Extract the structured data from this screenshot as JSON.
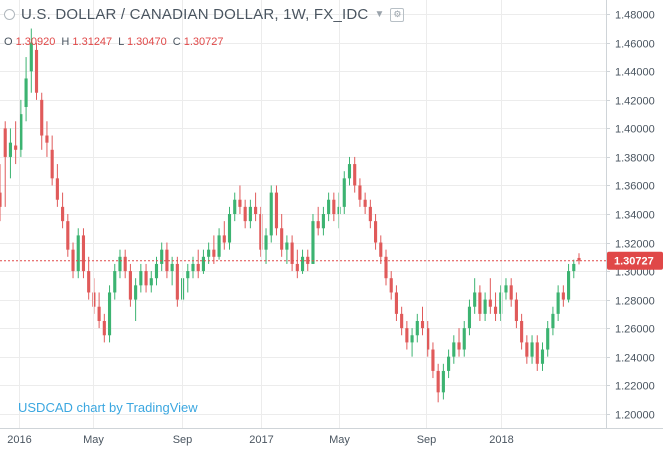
{
  "header": {
    "title": "U.S. DOLLAR / CANADIAN DOLLAR, 1W, FX_IDC",
    "caret": "▼",
    "settings_glyph": "⚙",
    "ohlc": [
      {
        "label": "O",
        "value": "1.30920"
      },
      {
        "label": "H",
        "value": "1.31247"
      },
      {
        "label": "L",
        "value": "1.30470"
      },
      {
        "label": "C",
        "value": "1.30727"
      }
    ]
  },
  "watermark": "USDCAD chart by TradingView",
  "chart_data": {
    "type": "candlestick",
    "title": "U.S. DOLLAR / CANADIAN DOLLAR, 1W, FX_IDC",
    "y_ticks": [
      "1.20000",
      "1.22000",
      "1.24000",
      "1.26000",
      "1.28000",
      "1.30000",
      "1.32000",
      "1.34000",
      "1.36000",
      "1.38000",
      "1.40000",
      "1.42000",
      "1.44000",
      "1.46000",
      "1.48000"
    ],
    "y_range": [
      1.19,
      1.49
    ],
    "x_ticks": [
      "2016",
      "May",
      "Sep",
      "2017",
      "May",
      "Sep",
      "2018"
    ],
    "last_price": "1.30727",
    "last_price_value": 1.30727,
    "colors": {
      "up": "#3cb371",
      "down": "#e05a5a",
      "last_line": "#e04848",
      "grid": "#ececec",
      "axis_text": "#4a5560"
    },
    "candles": [
      [
        1.355,
        1.375,
        1.335,
        1.345
      ],
      [
        1.4,
        1.405,
        1.345,
        1.38
      ],
      [
        1.38,
        1.4,
        1.365,
        1.39
      ],
      [
        1.388,
        1.405,
        1.375,
        1.385
      ],
      [
        1.385,
        1.42,
        1.38,
        1.41
      ],
      [
        1.415,
        1.45,
        1.405,
        1.435
      ],
      [
        1.44,
        1.47,
        1.425,
        1.46
      ],
      [
        1.455,
        1.46,
        1.42,
        1.425
      ],
      [
        1.42,
        1.425,
        1.385,
        1.395
      ],
      [
        1.395,
        1.405,
        1.38,
        1.39
      ],
      [
        1.385,
        1.395,
        1.36,
        1.365
      ],
      [
        1.365,
        1.375,
        1.345,
        1.35
      ],
      [
        1.345,
        1.355,
        1.33,
        1.335
      ],
      [
        1.335,
        1.34,
        1.31,
        1.315
      ],
      [
        1.315,
        1.32,
        1.295,
        1.3
      ],
      [
        1.3,
        1.33,
        1.295,
        1.325
      ],
      [
        1.325,
        1.33,
        1.295,
        1.3
      ],
      [
        1.3,
        1.31,
        1.28,
        1.285
      ],
      [
        1.285,
        1.295,
        1.27,
        1.275
      ],
      [
        1.275,
        1.285,
        1.26,
        1.265
      ],
      [
        1.265,
        1.27,
        1.25,
        1.255
      ],
      [
        1.255,
        1.29,
        1.25,
        1.285
      ],
      [
        1.285,
        1.305,
        1.28,
        1.3
      ],
      [
        1.3,
        1.315,
        1.295,
        1.31
      ],
      [
        1.31,
        1.315,
        1.295,
        1.3
      ],
      [
        1.3,
        1.305,
        1.275,
        1.28
      ],
      [
        1.28,
        1.295,
        1.265,
        1.29
      ],
      [
        1.29,
        1.305,
        1.285,
        1.3
      ],
      [
        1.3,
        1.305,
        1.285,
        1.29
      ],
      [
        1.29,
        1.3,
        1.285,
        1.295
      ],
      [
        1.295,
        1.31,
        1.29,
        1.305
      ],
      [
        1.305,
        1.32,
        1.3,
        1.315
      ],
      [
        1.315,
        1.32,
        1.295,
        1.3
      ],
      [
        1.3,
        1.31,
        1.29,
        1.305
      ],
      [
        1.305,
        1.31,
        1.275,
        1.28
      ],
      [
        1.28,
        1.3,
        1.278,
        1.295
      ],
      [
        1.295,
        1.305,
        1.285,
        1.3
      ],
      [
        1.3,
        1.31,
        1.295,
        1.305
      ],
      [
        1.305,
        1.315,
        1.295,
        1.3
      ],
      [
        1.3,
        1.315,
        1.298,
        1.31
      ],
      [
        1.31,
        1.32,
        1.305,
        1.315
      ],
      [
        1.315,
        1.325,
        1.305,
        1.31
      ],
      [
        1.31,
        1.33,
        1.308,
        1.325
      ],
      [
        1.325,
        1.335,
        1.315,
        1.32
      ],
      [
        1.32,
        1.345,
        1.315,
        1.34
      ],
      [
        1.34,
        1.355,
        1.335,
        1.35
      ],
      [
        1.35,
        1.36,
        1.34,
        1.345
      ],
      [
        1.345,
        1.35,
        1.33,
        1.335
      ],
      [
        1.335,
        1.35,
        1.33,
        1.345
      ],
      [
        1.345,
        1.355,
        1.335,
        1.34
      ],
      [
        1.34,
        1.345,
        1.31,
        1.315
      ],
      [
        1.315,
        1.33,
        1.305,
        1.325
      ],
      [
        1.325,
        1.36,
        1.32,
        1.355
      ],
      [
        1.355,
        1.36,
        1.325,
        1.33
      ],
      [
        1.33,
        1.34,
        1.31,
        1.315
      ],
      [
        1.315,
        1.325,
        1.305,
        1.32
      ],
      [
        1.32,
        1.325,
        1.3,
        1.305
      ],
      [
        1.305,
        1.315,
        1.295,
        1.3
      ],
      [
        1.3,
        1.315,
        1.298,
        1.31
      ],
      [
        1.31,
        1.315,
        1.3,
        1.305
      ],
      [
        1.305,
        1.34,
        1.305,
        1.335
      ],
      [
        1.335,
        1.345,
        1.325,
        1.33
      ],
      [
        1.33,
        1.345,
        1.325,
        1.34
      ],
      [
        1.34,
        1.355,
        1.335,
        1.35
      ],
      [
        1.35,
        1.355,
        1.335,
        1.34
      ],
      [
        1.34,
        1.355,
        1.33,
        1.345
      ],
      [
        1.345,
        1.37,
        1.34,
        1.365
      ],
      [
        1.365,
        1.38,
        1.36,
        1.375
      ],
      [
        1.375,
        1.38,
        1.355,
        1.36
      ],
      [
        1.36,
        1.365,
        1.345,
        1.35
      ],
      [
        1.35,
        1.355,
        1.34,
        1.345
      ],
      [
        1.345,
        1.35,
        1.33,
        1.335
      ],
      [
        1.335,
        1.34,
        1.315,
        1.32
      ],
      [
        1.32,
        1.325,
        1.305,
        1.31
      ],
      [
        1.31,
        1.315,
        1.29,
        1.295
      ],
      [
        1.295,
        1.3,
        1.28,
        1.285
      ],
      [
        1.285,
        1.29,
        1.265,
        1.27
      ],
      [
        1.27,
        1.275,
        1.255,
        1.26
      ],
      [
        1.26,
        1.265,
        1.245,
        1.25
      ],
      [
        1.25,
        1.26,
        1.24,
        1.255
      ],
      [
        1.255,
        1.27,
        1.25,
        1.265
      ],
      [
        1.265,
        1.275,
        1.255,
        1.26
      ],
      [
        1.26,
        1.265,
        1.24,
        1.245
      ],
      [
        1.245,
        1.25,
        1.225,
        1.23
      ],
      [
        1.23,
        1.235,
        1.208,
        1.215
      ],
      [
        1.215,
        1.235,
        1.21,
        1.23
      ],
      [
        1.23,
        1.245,
        1.225,
        1.24
      ],
      [
        1.24,
        1.255,
        1.235,
        1.25
      ],
      [
        1.25,
        1.26,
        1.24,
        1.245
      ],
      [
        1.245,
        1.265,
        1.24,
        1.26
      ],
      [
        1.26,
        1.28,
        1.255,
        1.275
      ],
      [
        1.275,
        1.295,
        1.27,
        1.285
      ],
      [
        1.285,
        1.29,
        1.265,
        1.27
      ],
      [
        1.27,
        1.285,
        1.265,
        1.28
      ],
      [
        1.28,
        1.295,
        1.27,
        1.275
      ],
      [
        1.275,
        1.285,
        1.265,
        1.27
      ],
      [
        1.27,
        1.29,
        1.265,
        1.285
      ],
      [
        1.285,
        1.295,
        1.28,
        1.29
      ],
      [
        1.29,
        1.295,
        1.275,
        1.28
      ],
      [
        1.28,
        1.285,
        1.26,
        1.265
      ],
      [
        1.265,
        1.27,
        1.245,
        1.25
      ],
      [
        1.25,
        1.255,
        1.235,
        1.24
      ],
      [
        1.24,
        1.255,
        1.235,
        1.25
      ],
      [
        1.25,
        1.255,
        1.23,
        1.235
      ],
      [
        1.235,
        1.25,
        1.23,
        1.245
      ],
      [
        1.245,
        1.265,
        1.24,
        1.26
      ],
      [
        1.26,
        1.275,
        1.255,
        1.27
      ],
      [
        1.27,
        1.29,
        1.265,
        1.285
      ],
      [
        1.285,
        1.29,
        1.275,
        1.28
      ],
      [
        1.28,
        1.305,
        1.278,
        1.3
      ],
      [
        1.3,
        1.308,
        1.295,
        1.305
      ],
      [
        1.3092,
        1.3125,
        1.3047,
        1.3073
      ]
    ]
  }
}
